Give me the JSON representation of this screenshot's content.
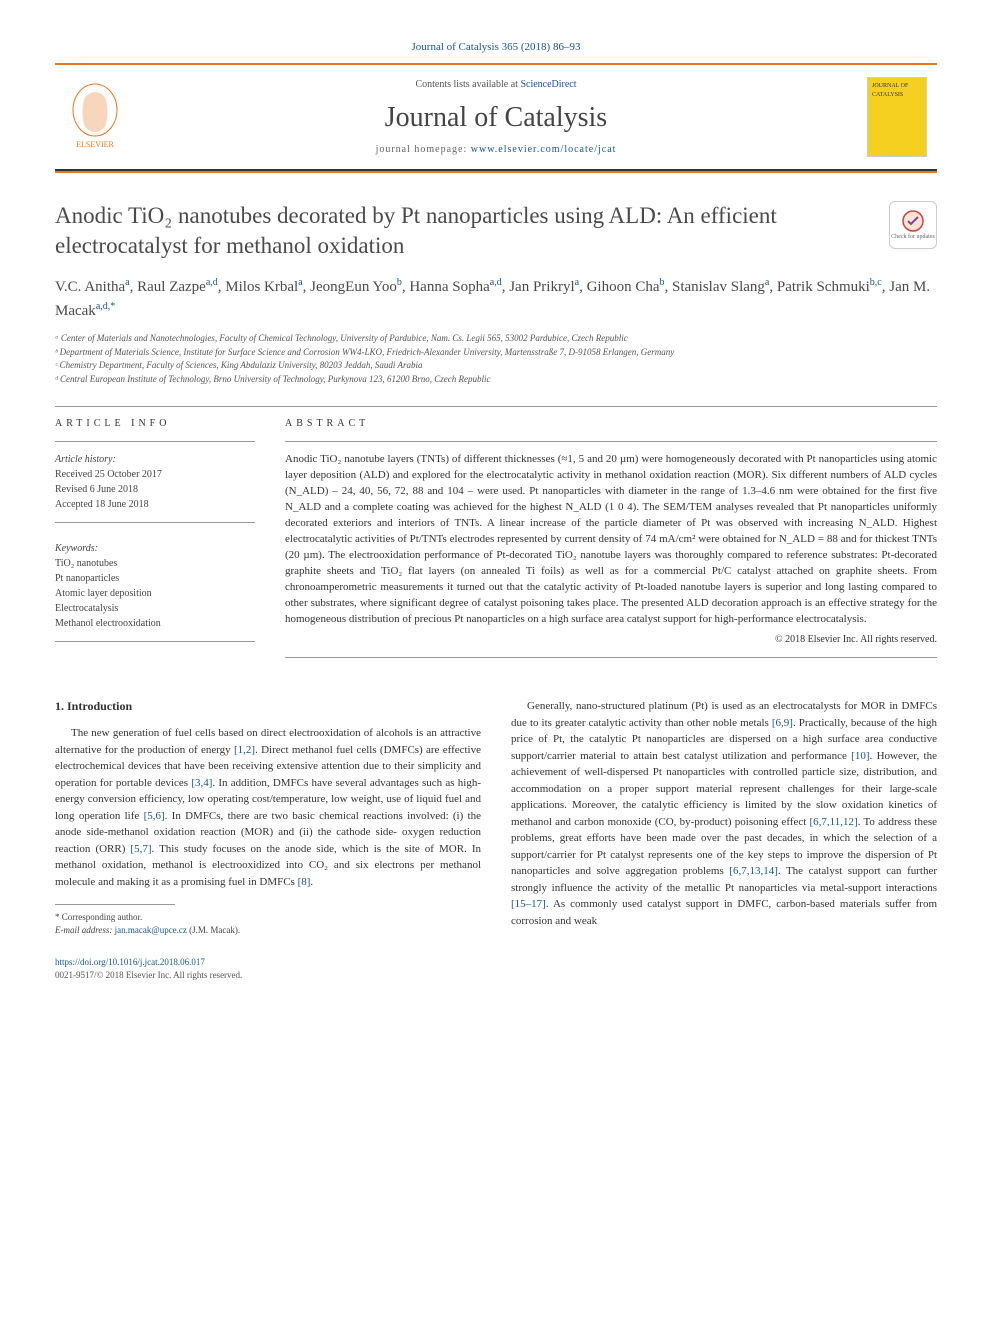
{
  "citation": "Journal of Catalysis 365 (2018) 86–93",
  "masthead": {
    "contents_prefix": "Contents lists available at ",
    "contents_link": "ScienceDirect",
    "journal_name": "Journal of Catalysis",
    "homepage_label": "journal homepage: ",
    "homepage_url": "www.elsevier.com/locate/jcat",
    "cover_text_top": "JOURNAL OF",
    "cover_text_bottom": "CATALYSIS"
  },
  "colors": {
    "accent_rule": "#e87722",
    "link": "#1a5490",
    "text": "#333333",
    "cover_bg": "#f5d020"
  },
  "title": "Anodic TiO₂ nanotubes decorated by Pt nanoparticles using ALD: An efficient electrocatalyst for methanol oxidation",
  "check_updates_label": "Check for updates",
  "authors_html": "V.C. Anitha<sup>a</sup>, Raul Zazpe<sup>a,d</sup>, Milos Krbal<sup>a</sup>, JeongEun Yoo<sup>b</sup>, Hanna Sopha<sup>a,d</sup>, Jan Prikryl<sup>a</sup>, Gihoon Cha<sup>b</sup>, Stanislav Slang<sup>a</sup>, Patrik Schmuki<sup>b,c</sup>, Jan M. Macak<sup>a,d,*</sup>",
  "affiliations": [
    "ᵃ Center of Materials and Nanotechnologies, Faculty of Chemical Technology, University of Pardubice, Nam. Cs. Legii 565, 53002 Pardubice, Czech Republic",
    "ᵇ Department of Materials Science, Institute for Surface Science and Corrosion WW4-LKO, Friedrich-Alexander University, Martensstraße 7, D-91058 Erlangen, Germany",
    "ᶜ Chemistry Department, Faculty of Sciences, King Abdulaziz University, 80203 Jeddah, Saudi Arabia",
    "ᵈ Central European Institute of Technology, Brno University of Technology, Purkynova 123, 61200 Brno, Czech Republic"
  ],
  "article_info": {
    "label": "ARTICLE INFO",
    "history_label": "Article history:",
    "received": "Received 25 October 2017",
    "revised": "Revised 6 June 2018",
    "accepted": "Accepted 18 June 2018",
    "keywords_label": "Keywords:",
    "keywords": [
      "TiO₂ nanotubes",
      "Pt nanoparticles",
      "Atomic layer deposition",
      "Electrocatalysis",
      "Methanol electrooxidation"
    ]
  },
  "abstract": {
    "label": "ABSTRACT",
    "text": "Anodic TiO₂ nanotube layers (TNTs) of different thicknesses (≈1, 5 and 20 µm) were homogeneously decorated with Pt nanoparticles using atomic layer deposition (ALD) and explored for the electrocatalytic activity in methanol oxidation reaction (MOR). Six different numbers of ALD cycles (N_ALD) – 24, 40, 56, 72, 88 and 104 – were used. Pt nanoparticles with diameter in the range of 1.3–4.6 nm were obtained for the first five N_ALD and a complete coating was achieved for the highest N_ALD (1 0 4). The SEM/TEM analyses revealed that Pt nanoparticles uniformly decorated exteriors and interiors of TNTs. A linear increase of the particle diameter of Pt was observed with increasing N_ALD. Highest electrocatalytic activities of Pt/TNTs electrodes represented by current density of 74 mA/cm² were obtained for N_ALD = 88 and for thickest TNTs (20 µm). The electrooxidation performance of Pt-decorated TiO₂ nanotube layers was thoroughly compared to reference substrates: Pt-decorated graphite sheets and TiO₂ flat layers (on annealed Ti foils) as well as for a commercial Pt/C catalyst attached on graphite sheets. From chronoamperometric measurements it turned out that the catalytic activity of Pt-loaded nanotube layers is superior and long lasting compared to other substrates, where significant degree of catalyst poisoning takes place. The presented ALD decoration approach is an effective strategy for the homogeneous distribution of precious Pt nanoparticles on a high surface area catalyst support for high-performance electrocatalysis.",
    "copyright": "© 2018 Elsevier Inc. All rights reserved."
  },
  "introduction": {
    "heading": "1. Introduction",
    "col1_p1": "The new generation of fuel cells based on direct electrooxidation of alcohols is an attractive alternative for the production of energy [1,2]. Direct methanol fuel cells (DMFCs) are effective electrochemical devices that have been receiving extensive attention due to their simplicity and operation for portable devices [3,4]. In addition, DMFCs have several advantages such as high-energy conversion efficiency, low operating cost/temperature, low weight, use of liquid fuel and long operation life [5,6]. In DMFCs, there are two basic chemical reactions involved: (i) the anode side-methanol oxidation reaction (MOR) and (ii) the cathode side- oxygen reduction reaction (ORR) [5,7]. This study focuses on the anode side, which is the site of MOR. In methanol oxidation, methanol is electrooxidized into CO₂ and six electrons per methanol molecule and making it as a promising fuel in DMFCs [8].",
    "col2_p1": "Generally, nano-structured platinum (Pt) is used as an electrocatalysts for MOR in DMFCs due to its greater catalytic activity than other noble metals [6,9]. Practically, because of the high price of Pt, the catalytic Pt nanoparticles are dispersed on a high surface area conductive support/carrier material to attain best catalyst utilization and performance [10]. However, the achievement of well-dispersed Pt nanoparticles with controlled particle size, distribution, and accommodation on a proper support material represent challenges for their large-scale applications. Moreover, the catalytic efficiency is limited by the slow oxidation kinetics of methanol and carbon monoxide (CO, by-product) poisoning effect [6,7,11,12]. To address these problems, great efforts have been made over the past decades, in which the selection of a support/carrier for Pt catalyst represents one of the key steps to improve the dispersion of Pt nanoparticles and solve aggregation problems [6,7,13,14]. The catalyst support can further strongly influence the activity of the metallic Pt nanoparticles via metal-support interactions [15–17]. As commonly used catalyst support in DMFC, carbon-based materials suffer from corrosion and weak"
  },
  "footnotes": {
    "corresponding": "* Corresponding author.",
    "email_label": "E-mail address: ",
    "email": "jan.macak@upce.cz",
    "email_attribution": " (J.M. Macak)."
  },
  "footer": {
    "doi": "https://doi.org/10.1016/j.jcat.2018.06.017",
    "issn_copy": "0021-9517/© 2018 Elsevier Inc. All rights reserved."
  }
}
